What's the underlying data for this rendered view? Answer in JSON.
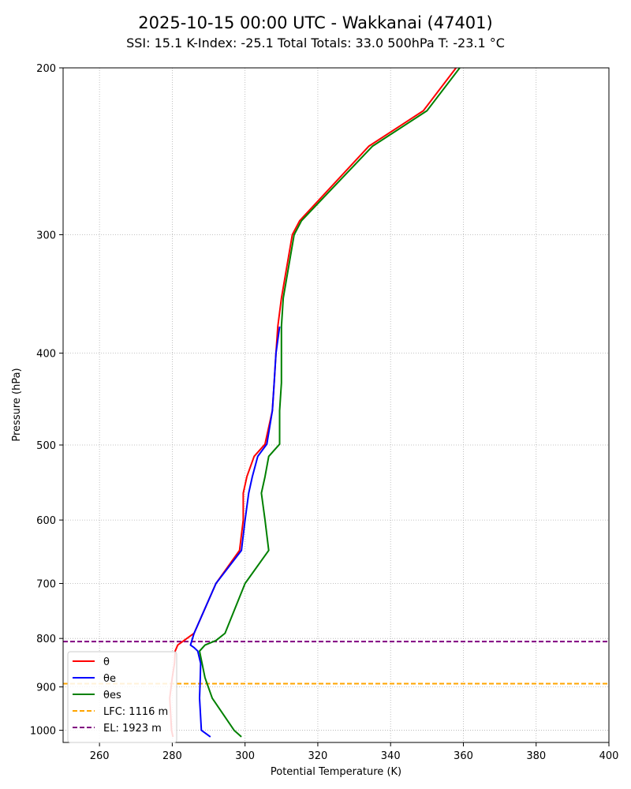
{
  "chart_data": {
    "type": "line",
    "title": "2025-10-15 00:00 UTC - Wakkanai (47401)",
    "subtitle": "SSI: 15.1   K-Index: -25.1   Total Totals: 33.0   500hPa T: -23.1 °C",
    "xlabel": "Potential Temperature (K)",
    "ylabel": "Pressure (hPa)",
    "xlim": [
      250,
      400
    ],
    "ylim": [
      1030,
      200
    ],
    "y_scale": "log",
    "grid": true,
    "legend_position": "lower-left",
    "x_ticks": [
      260,
      280,
      300,
      320,
      340,
      360,
      380,
      400
    ],
    "y_ticks": [
      200,
      300,
      400,
      500,
      600,
      700,
      800,
      900,
      1000
    ],
    "series": [
      {
        "name": "θ",
        "color": "#ff0000",
        "points": [
          [
            280.2,
            1016
          ],
          [
            279.8,
            1000
          ],
          [
            279.3,
            925
          ],
          [
            280.0,
            880
          ],
          [
            280.6,
            850
          ],
          [
            280.8,
            825
          ],
          [
            281.5,
            813
          ],
          [
            286,
            790
          ],
          [
            292,
            700
          ],
          [
            298.5,
            646
          ],
          [
            299.5,
            600
          ],
          [
            299.5,
            562
          ],
          [
            300.5,
            540
          ],
          [
            302.5,
            514
          ],
          [
            305.5,
            499
          ],
          [
            307.5,
            460
          ],
          [
            308,
            430
          ],
          [
            308.5,
            400
          ],
          [
            309,
            375
          ],
          [
            310,
            350
          ],
          [
            313,
            300
          ],
          [
            315,
            290
          ],
          [
            334,
            242
          ],
          [
            349,
            222
          ],
          [
            358,
            200
          ]
        ]
      },
      {
        "name": "θe",
        "color": "#0000ff",
        "points": [
          [
            290.5,
            1016
          ],
          [
            288,
            1000
          ],
          [
            287.5,
            925
          ],
          [
            287.7,
            880
          ],
          [
            287.8,
            850
          ],
          [
            287,
            825
          ],
          [
            286,
            818
          ],
          [
            285,
            813
          ],
          [
            286,
            790
          ],
          [
            292,
            700
          ],
          [
            299,
            646
          ],
          [
            300,
            600
          ],
          [
            301,
            562
          ],
          [
            302,
            540
          ],
          [
            303.5,
            514
          ],
          [
            306,
            499
          ],
          [
            307.5,
            460
          ],
          [
            308,
            430
          ],
          [
            308.5,
            400
          ],
          [
            309.5,
            375
          ]
        ]
      },
      {
        "name": "θes",
        "color": "#008000",
        "points": [
          [
            299,
            1016
          ],
          [
            297,
            1000
          ],
          [
            291,
            925
          ],
          [
            289,
            880
          ],
          [
            287.5,
            825
          ],
          [
            289,
            813
          ],
          [
            292,
            804
          ],
          [
            294.5,
            790
          ],
          [
            300,
            700
          ],
          [
            306.5,
            646
          ],
          [
            305.5,
            600
          ],
          [
            304.5,
            562
          ],
          [
            305.5,
            540
          ],
          [
            306.5,
            514
          ],
          [
            309.5,
            499
          ],
          [
            309.5,
            460
          ],
          [
            310,
            430
          ],
          [
            310,
            400
          ],
          [
            310,
            375
          ],
          [
            310.5,
            350
          ],
          [
            313.5,
            300
          ],
          [
            315.5,
            290
          ],
          [
            335,
            242
          ],
          [
            350,
            222
          ],
          [
            359,
            200
          ]
        ]
      }
    ],
    "hlines": [
      {
        "name": "LFC: 1116 m",
        "pressure": 893,
        "color": "#ffa500"
      },
      {
        "name": "EL: 1923 m",
        "pressure": 806,
        "color": "#800080"
      }
    ]
  }
}
